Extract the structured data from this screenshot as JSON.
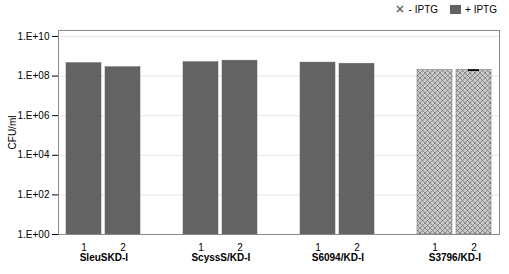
{
  "chart_data": {
    "type": "bar",
    "categories": [
      "1",
      "2"
    ],
    "series": [
      {
        "name": "SleuSKD-I",
        "color": "#636363",
        "values": [
          450000000,
          280000000
        ]
      },
      {
        "name": "ScyssS/KD-I",
        "color": "#636363",
        "values": [
          500000000,
          600000000
        ]
      },
      {
        "name": "S6094/KD-I",
        "color": "#636363",
        "values": [
          480000000,
          420000000
        ]
      },
      {
        "name": "S3796/KD-I",
        "color": "#c8c8c8",
        "marker": "x",
        "values": [
          200000000,
          200000000
        ],
        "errors": [
          0,
          8000000
        ]
      }
    ],
    "ylabel": "CFU/ml",
    "ylim": [
      1,
      20000000000
    ],
    "yticks": [
      {
        "value": 1,
        "label": "1.E+00"
      },
      {
        "value": 100,
        "label": "1.E+02"
      },
      {
        "value": 10000,
        "label": "1.E+04"
      },
      {
        "value": 1000000,
        "label": "1.E+06"
      },
      {
        "value": 100000000,
        "label": "1.E+08"
      },
      {
        "value": 10000000000,
        "label": "1.E+10"
      }
    ],
    "log": "y",
    "grid": true,
    "legend": "upper right",
    "legend_entries": [
      {
        "name": "- IPTG",
        "color": "#636363",
        "marker": "x"
      },
      {
        "name": "+ IPTG",
        "color": "#636363"
      }
    ]
  }
}
